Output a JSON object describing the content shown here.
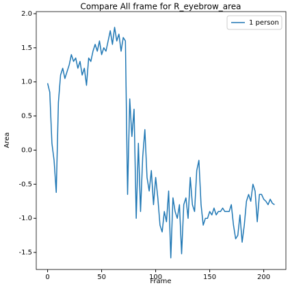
{
  "chart_data": {
    "type": "line",
    "title": "Compare All frame for R_eyebrow_area",
    "xlabel": "Frame",
    "ylabel": "Area",
    "x": [
      0,
      2,
      4,
      6,
      8,
      10,
      12,
      14,
      16,
      18,
      20,
      22,
      24,
      26,
      28,
      30,
      32,
      34,
      36,
      38,
      40,
      42,
      44,
      46,
      48,
      50,
      52,
      54,
      56,
      58,
      60,
      62,
      64,
      66,
      68,
      70,
      72,
      74,
      76,
      78,
      80,
      82,
      84,
      86,
      88,
      90,
      92,
      94,
      96,
      98,
      100,
      102,
      104,
      106,
      108,
      110,
      112,
      114,
      116,
      118,
      120,
      122,
      124,
      126,
      128,
      130,
      132,
      134,
      136,
      138,
      140,
      142,
      144,
      146,
      148,
      150,
      152,
      154,
      156,
      158,
      160,
      162,
      164,
      166,
      168,
      170,
      172,
      174,
      176,
      178,
      180,
      182,
      184,
      186,
      188,
      190,
      192,
      194,
      196,
      198,
      200,
      202,
      204,
      206,
      208,
      210
    ],
    "series": [
      {
        "name": "1 person",
        "color": "#1f77b4",
        "values": [
          0.98,
          0.85,
          0.1,
          -0.15,
          -0.62,
          0.7,
          1.1,
          1.2,
          1.05,
          1.15,
          1.25,
          1.4,
          1.3,
          1.35,
          1.2,
          1.3,
          1.1,
          1.2,
          0.95,
          1.35,
          1.3,
          1.45,
          1.55,
          1.45,
          1.6,
          1.4,
          1.5,
          1.45,
          1.6,
          1.75,
          1.55,
          1.8,
          1.6,
          1.7,
          1.45,
          1.65,
          1.6,
          -0.65,
          0.75,
          0.2,
          0.6,
          -1.0,
          0.1,
          -0.9,
          -0.1,
          0.3,
          -0.4,
          -0.6,
          -0.3,
          -0.8,
          -0.4,
          -0.7,
          -1.1,
          -1.2,
          -0.9,
          -1.05,
          -0.6,
          -1.58,
          -0.7,
          -0.9,
          -1.0,
          -0.8,
          -1.52,
          -0.8,
          -0.7,
          -1.0,
          -0.4,
          -0.8,
          -0.9,
          -0.3,
          -0.15,
          -0.8,
          -1.1,
          -1.0,
          -1.0,
          -0.9,
          -0.95,
          -0.85,
          -0.95,
          -0.9,
          -0.9,
          -0.85,
          -0.9,
          -0.9,
          -0.9,
          -0.8,
          -1.1,
          -1.3,
          -1.25,
          -0.95,
          -1.35,
          -1.1,
          -0.75,
          -0.65,
          -0.75,
          -0.5,
          -0.6,
          -1.05,
          -0.65,
          -0.65,
          -0.72,
          -0.75,
          -0.8,
          -0.72,
          -0.78,
          -0.8
        ]
      }
    ],
    "xlim": [
      -10.5,
      220.5
    ],
    "xticks": [
      0,
      50,
      100,
      150,
      200
    ],
    "ylim": [
      -1.75,
      2.03
    ],
    "yticks": [
      -1.5,
      {
        "value": -1,
        "label": "-1.0"
      },
      -0.5,
      {
        "value": 0,
        "label": "0.0"
      },
      0.5,
      {
        "value": 1,
        "label": "1.0"
      },
      1.5,
      {
        "value": 2,
        "label": "2.0"
      }
    ],
    "legend": "upper right"
  }
}
